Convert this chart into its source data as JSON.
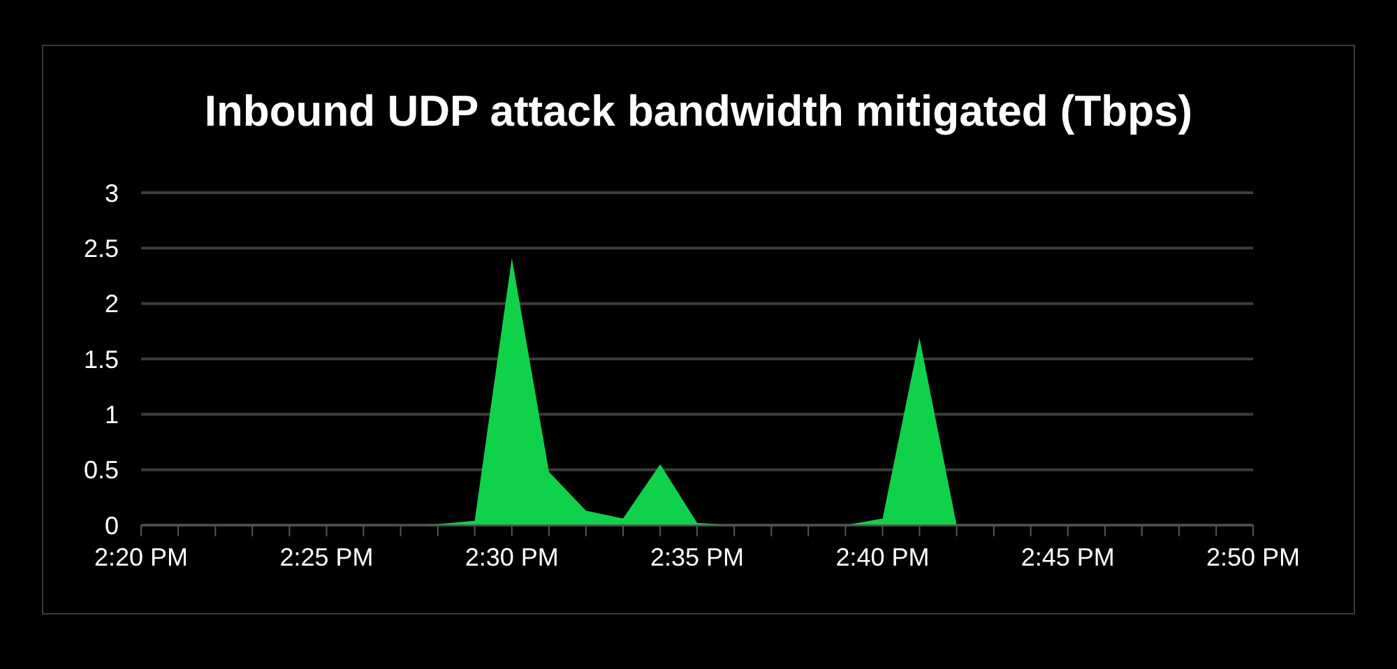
{
  "chart_data": {
    "type": "area",
    "title": "Inbound UDP attack bandwidth mitigated (Tbps)",
    "x": [
      14.3333,
      14.35,
      14.3667,
      14.3833,
      14.4,
      14.4167,
      14.4333,
      14.45,
      14.4667,
      14.4833,
      14.5,
      14.5167,
      14.5333,
      14.55,
      14.5667,
      14.5833,
      14.6,
      14.6167,
      14.6333,
      14.65,
      14.6667,
      14.6833,
      14.7,
      14.7167,
      14.7333,
      14.75,
      14.7667,
      14.7833,
      14.8,
      14.8167,
      14.8333
    ],
    "series": [
      {
        "color": "#10d24a",
        "values": [
          0,
          0,
          0,
          0,
          0,
          0,
          0,
          0,
          0.01,
          0.04,
          2.41,
          0.48,
          0.13,
          0.06,
          0.55,
          0.02,
          0,
          0,
          0,
          0,
          0.06,
          1.69,
          0,
          0,
          0,
          0,
          0,
          0,
          0,
          0,
          0
        ]
      }
    ],
    "xlim": [
      14.3333,
      14.8333
    ],
    "xticks": [
      {
        "value": 14.3333,
        "label": "2:20 PM"
      },
      {
        "value": 14.35,
        "label": null
      },
      {
        "value": 14.3667,
        "label": null
      },
      {
        "value": 14.3833,
        "label": null
      },
      {
        "value": 14.4,
        "label": null
      },
      {
        "value": 14.4167,
        "label": "2:25 PM"
      },
      {
        "value": 14.4333,
        "label": null
      },
      {
        "value": 14.45,
        "label": null
      },
      {
        "value": 14.4667,
        "label": null
      },
      {
        "value": 14.4833,
        "label": null
      },
      {
        "value": 14.5,
        "label": "2:30 PM"
      },
      {
        "value": 14.5167,
        "label": null
      },
      {
        "value": 14.5333,
        "label": null
      },
      {
        "value": 14.55,
        "label": null
      },
      {
        "value": 14.5667,
        "label": null
      },
      {
        "value": 14.5833,
        "label": "2:35 PM"
      },
      {
        "value": 14.6,
        "label": null
      },
      {
        "value": 14.6167,
        "label": null
      },
      {
        "value": 14.6333,
        "label": null
      },
      {
        "value": 14.65,
        "label": null
      },
      {
        "value": 14.6667,
        "label": "2:40 PM"
      },
      {
        "value": 14.6833,
        "label": null
      },
      {
        "value": 14.7,
        "label": null
      },
      {
        "value": 14.7167,
        "label": null
      },
      {
        "value": 14.7333,
        "label": null
      },
      {
        "value": 14.75,
        "label": "2:45 PM"
      },
      {
        "value": 14.7667,
        "label": null
      },
      {
        "value": 14.7833,
        "label": null
      },
      {
        "value": 14.8,
        "label": null
      },
      {
        "value": 14.8167,
        "label": null
      },
      {
        "value": 14.8333,
        "label": "2:50 PM"
      }
    ],
    "ylim": [
      0,
      3
    ],
    "yticks": [
      0,
      0.5,
      1,
      1.5,
      2,
      2.5,
      3
    ],
    "grid": "y",
    "legend": false
  }
}
